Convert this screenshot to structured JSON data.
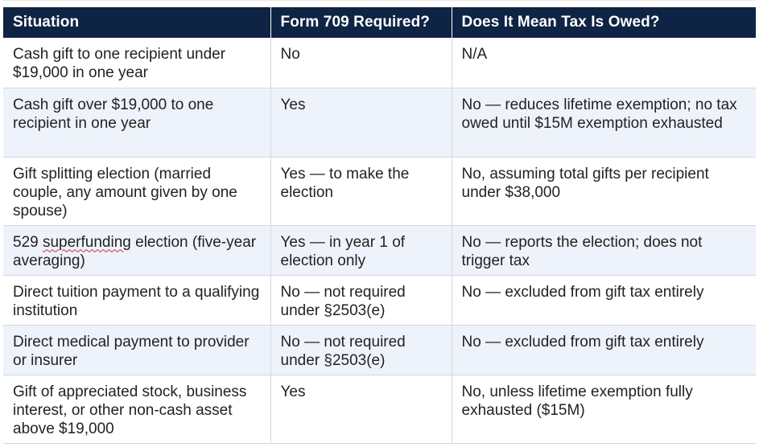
{
  "table": {
    "headers": [
      "Situation",
      "Form 709 Required?",
      "Does It Mean Tax Is Owed?"
    ],
    "rows": [
      {
        "situation": "Cash gift to one recipient under $19,000 in one year",
        "form709": "No",
        "tax_owed": "N/A"
      },
      {
        "situation": "Cash gift over $19,000 to one recipient in one year",
        "form709": "Yes",
        "tax_owed": "No — reduces lifetime exemption; no tax owed until $15M exemption exhausted"
      },
      {
        "situation": "Gift splitting election (married couple, any amount given by one spouse)",
        "form709": "Yes — to make the election",
        "tax_owed": "No, assuming total gifts per recipient under $38,000"
      },
      {
        "situation_prefix": "529 ",
        "situation_marked": "superfunding",
        "situation_suffix": " election (five-year averaging)",
        "form709": "Yes — in year 1 of election only",
        "tax_owed": "No — reports the election; does not trigger tax"
      },
      {
        "situation": "Direct tuition payment to a qualifying institution",
        "form709": "No — not required under §2503(e)",
        "tax_owed": "No — excluded from gift tax entirely"
      },
      {
        "situation": "Direct medical payment to provider or insurer",
        "form709": "No — not required under §2503(e)",
        "tax_owed": "No — excluded from gift tax entirely"
      },
      {
        "situation": "Gift of appreciated stock, business interest, or other non-cash asset above $19,000",
        "form709": "Yes",
        "tax_owed": "No, unless lifetime exemption fully exhausted ($15M)"
      }
    ]
  },
  "colors": {
    "header_bg": "#0f2344",
    "header_text": "#ffffff",
    "row_alt_bg": "#eef3fb",
    "spellcheck": "#d22b2b"
  }
}
